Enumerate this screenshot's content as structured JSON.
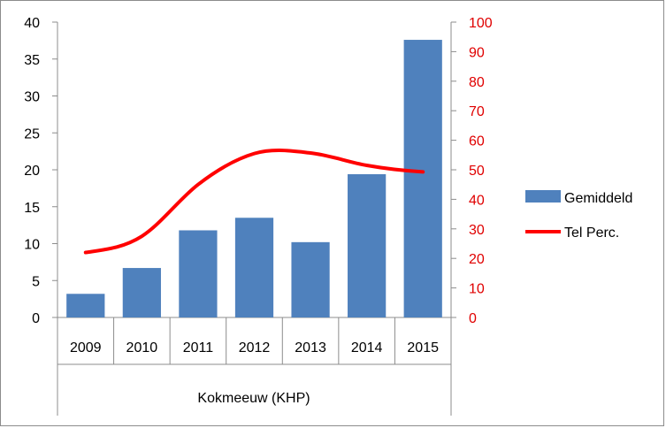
{
  "chart_data": {
    "type": "bar",
    "categories": [
      "2009",
      "2010",
      "2011",
      "2012",
      "2013",
      "2014",
      "2015"
    ],
    "group_label": "Kokmeeuw (KHP)",
    "series": [
      {
        "name": "Gemiddeld",
        "type": "bar",
        "axis": "left",
        "color": "#4f81bd",
        "values": [
          3.2,
          6.7,
          11.8,
          13.5,
          10.2,
          19.4,
          37.6
        ]
      },
      {
        "name": "Tel Perc.",
        "type": "line",
        "axis": "right",
        "color": "#ff0000",
        "values": [
          22,
          27.5,
          45,
          55.5,
          55.7,
          51.5,
          49.3
        ]
      }
    ],
    "y_left": {
      "min": 0,
      "max": 40,
      "step": 5,
      "ticks": [
        "0",
        "5",
        "10",
        "15",
        "20",
        "25",
        "30",
        "35",
        "40"
      ]
    },
    "y_right": {
      "min": 0,
      "max": 100,
      "step": 10,
      "color": "#ff0000",
      "ticks": [
        "0",
        "10",
        "20",
        "30",
        "40",
        "50",
        "60",
        "70",
        "80",
        "90",
        "100"
      ]
    },
    "legend_position": "right",
    "grid": false
  }
}
